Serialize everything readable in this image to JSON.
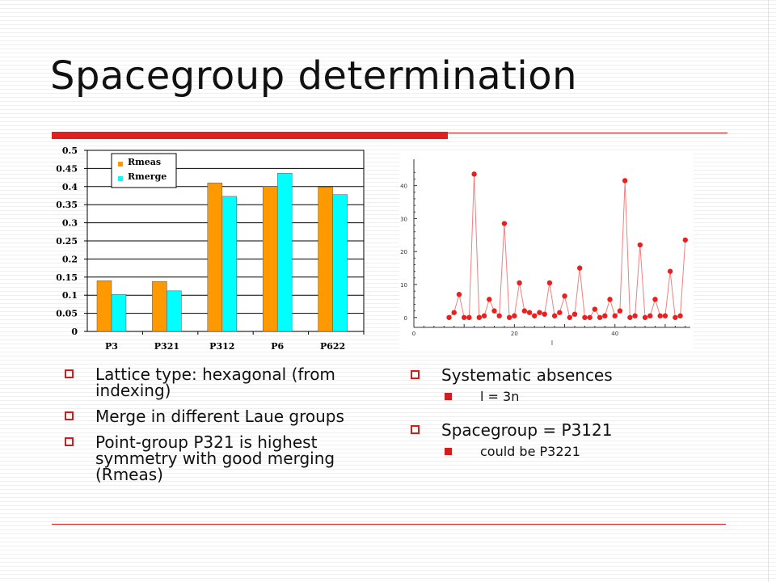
{
  "title": "Spacegroup determination",
  "colors": {
    "rule": "#e31e1e",
    "rmeas": "#ff9900",
    "rmerge": "#00ffff",
    "scatter": "#e82020"
  },
  "left_bullets": [
    "Lattice type: hexagonal (from indexing)",
    "Merge in different Laue groups",
    "Point-group P321 is highest symmetry with good merging (Rmeas)"
  ],
  "right_bullets": [
    {
      "text": "Systematic absences",
      "sub": [
        "l = 3n"
      ]
    },
    {
      "text": "Spacegroup = P3121",
      "sub": [
        "could be P3221"
      ]
    }
  ],
  "chart_data": [
    {
      "type": "bar",
      "categories": [
        "P3",
        "P321",
        "P312",
        "P6",
        "P622"
      ],
      "series": [
        {
          "name": "Rmeas",
          "color": "#ff9900",
          "values": [
            0.14,
            0.138,
            0.41,
            0.4,
            0.398
          ]
        },
        {
          "name": "Rmerge",
          "color": "#00ffff",
          "values": [
            0.102,
            0.112,
            0.373,
            0.437,
            0.378
          ]
        }
      ],
      "ylim": [
        0,
        0.5
      ],
      "yticks": [
        "0",
        "0.05",
        "0.1",
        "0.15",
        "0.2",
        "0.25",
        "0.3",
        "0.35",
        "0.4",
        "0.45",
        "0.5"
      ],
      "legend": "top-left",
      "grid": true
    },
    {
      "type": "scatter",
      "xlabel": "l",
      "xlim": [
        0,
        55
      ],
      "ylim": [
        -3,
        48
      ],
      "xticks": [
        0,
        20,
        40
      ],
      "yticks": [
        0,
        10,
        20,
        30,
        40
      ],
      "x": [
        7,
        8,
        9,
        10,
        11,
        12,
        13,
        14,
        15,
        16,
        17,
        18,
        19,
        20,
        21,
        22,
        23,
        24,
        25,
        26,
        27,
        28,
        29,
        30,
        31,
        32,
        33,
        34,
        35,
        36,
        37,
        38,
        39,
        40,
        41,
        42,
        43,
        44,
        45,
        46,
        47,
        48,
        49,
        50,
        51,
        52,
        53,
        54
      ],
      "y": [
        0,
        1.5,
        7,
        0,
        0,
        43.5,
        0,
        0.5,
        5.5,
        2,
        0.5,
        28.5,
        0,
        0.5,
        10.5,
        2,
        1.5,
        0.5,
        1.5,
        1,
        10.5,
        0.5,
        1.5,
        6.5,
        0,
        1,
        15,
        0,
        0,
        2.5,
        0,
        0.5,
        5.5,
        0.5,
        2,
        41.5,
        0,
        0.5,
        22,
        0,
        0.5,
        5.5,
        0.5,
        0.5,
        14,
        0,
        0.5,
        23.5
      ]
    }
  ]
}
